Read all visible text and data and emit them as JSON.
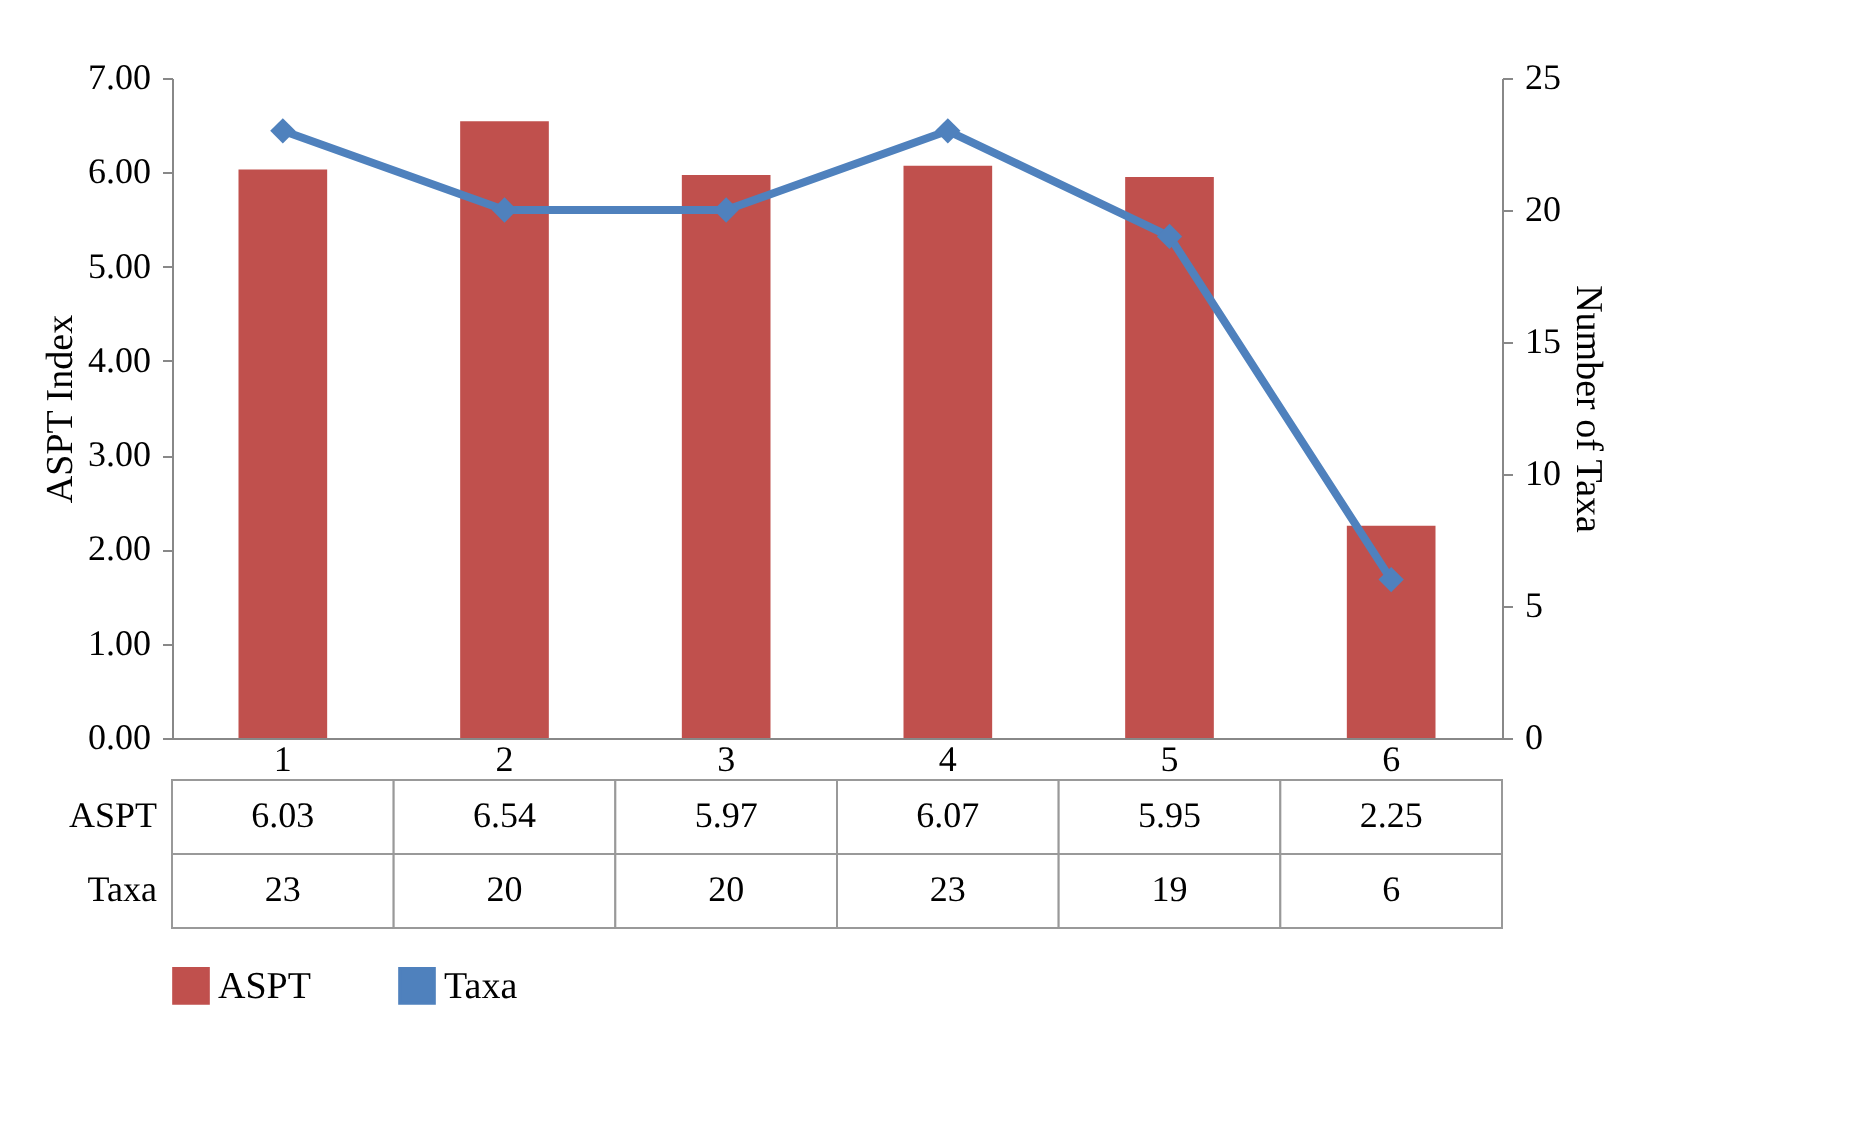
{
  "chart_data": {
    "type": "bar",
    "ylabel": "ASPT Index",
    "y2label": "Number of Taxa",
    "categories": [
      "1",
      "2",
      "3",
      "4",
      "5",
      "6"
    ],
    "series": [
      {
        "name": "ASPT",
        "color": "#c0504d",
        "values": [
          6.03,
          6.54,
          5.97,
          6.07,
          5.95,
          2.25
        ]
      },
      {
        "name": "Taxa",
        "type": "line",
        "axis": "y2",
        "color": "#4f81bd",
        "values": [
          23,
          20,
          20,
          23,
          19,
          6
        ]
      }
    ],
    "ylim": [
      0,
      7
    ],
    "yticks": [
      {
        "value": 0,
        "label": "0.00"
      },
      {
        "value": 1,
        "label": "1.00"
      },
      {
        "value": 2,
        "label": "2.00"
      },
      {
        "value": 3,
        "label": "3.00"
      },
      {
        "value": 4,
        "label": "4.00"
      },
      {
        "value": 5,
        "label": "5.00"
      },
      {
        "value": 6,
        "label": "6.00"
      },
      {
        "value": 7,
        "label": "7.00"
      }
    ],
    "y2lim": [
      0,
      25
    ],
    "y2ticks": [
      0,
      5,
      10,
      15,
      20,
      25
    ],
    "marker": "diamond",
    "data_labels": true,
    "legend": "bottom",
    "grid": false
  }
}
